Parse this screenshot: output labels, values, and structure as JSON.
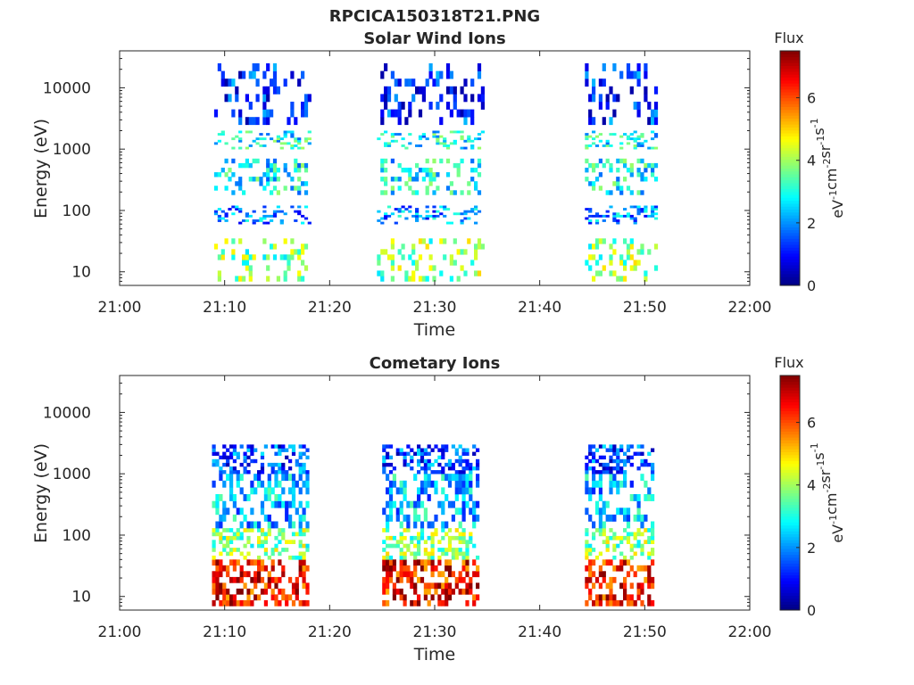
{
  "figure": {
    "suptitle": "RPCICA150318T21.PNG"
  },
  "colorbar": {
    "label": "Flux",
    "unit_base": "eV",
    "unit_parts": [
      {
        "base": "eV",
        "exp": "-1"
      },
      {
        "base": "cm",
        "exp": "-2"
      },
      {
        "base": "sr",
        "exp": "-1"
      },
      {
        "base": "s",
        "exp": "-1"
      }
    ],
    "range": [
      0,
      7.5
    ],
    "ticks": [
      "0",
      "2",
      "4",
      "6"
    ],
    "colormap": "jet"
  },
  "colors": {
    "axes": "#262626",
    "background": "#ffffff"
  },
  "chart_data": [
    {
      "type": "heatmap",
      "title": "Solar Wind Ions",
      "xlabel": "Time",
      "ylabel": "Energy (eV)",
      "xlim": [
        "21:00",
        "22:00"
      ],
      "ylim": [
        6,
        40000
      ],
      "yscale": "log",
      "xticks": [
        "21:00",
        "21:10",
        "21:20",
        "21:30",
        "21:40",
        "21:50",
        "22:00"
      ],
      "yticks": [
        "10",
        "100",
        "1000",
        "10000"
      ],
      "grid": false,
      "bursts": [
        {
          "start_min": 9.0,
          "end_min": 18.2,
          "profile": "solarwind"
        },
        {
          "start_min": 24.5,
          "end_min": 34.5,
          "profile": "solarwind"
        },
        {
          "start_min": 44.3,
          "end_min": 51.0,
          "profile": "solarwind"
        }
      ],
      "energy_bands": [
        {
          "e_low": 7,
          "e_high": 35,
          "flux": 3.8
        },
        {
          "e_low": 60,
          "e_high": 120,
          "flux": 2.0
        },
        {
          "e_low": 180,
          "e_high": 700,
          "flux": 2.8
        },
        {
          "e_low": 1000,
          "e_high": 2000,
          "flux": 2.8
        },
        {
          "e_low": 2500,
          "e_high": 25000,
          "flux": 1.2
        }
      ]
    },
    {
      "type": "heatmap",
      "title": "Cometary Ions",
      "xlabel": "Time",
      "ylabel": "Energy (eV)",
      "xlim": [
        "21:00",
        "22:00"
      ],
      "ylim": [
        6,
        40000
      ],
      "yscale": "log",
      "xticks": [
        "21:00",
        "21:10",
        "21:20",
        "21:30",
        "21:40",
        "21:50",
        "22:00"
      ],
      "yticks": [
        "10",
        "100",
        "1000",
        "10000"
      ],
      "grid": false,
      "bursts": [
        {
          "start_min": 8.8,
          "end_min": 18.0,
          "profile": "cometary"
        },
        {
          "start_min": 25.0,
          "end_min": 34.2,
          "profile": "cometary"
        },
        {
          "start_min": 44.3,
          "end_min": 50.8,
          "profile": "cometary"
        }
      ],
      "energy_bands": [
        {
          "e_low": 7,
          "e_high": 40,
          "flux": 6.5
        },
        {
          "e_low": 40,
          "e_high": 130,
          "flux": 3.8
        },
        {
          "e_low": 130,
          "e_high": 1000,
          "flux": 2.3
        },
        {
          "e_low": 1000,
          "e_high": 3000,
          "flux": 1.5
        }
      ]
    }
  ]
}
